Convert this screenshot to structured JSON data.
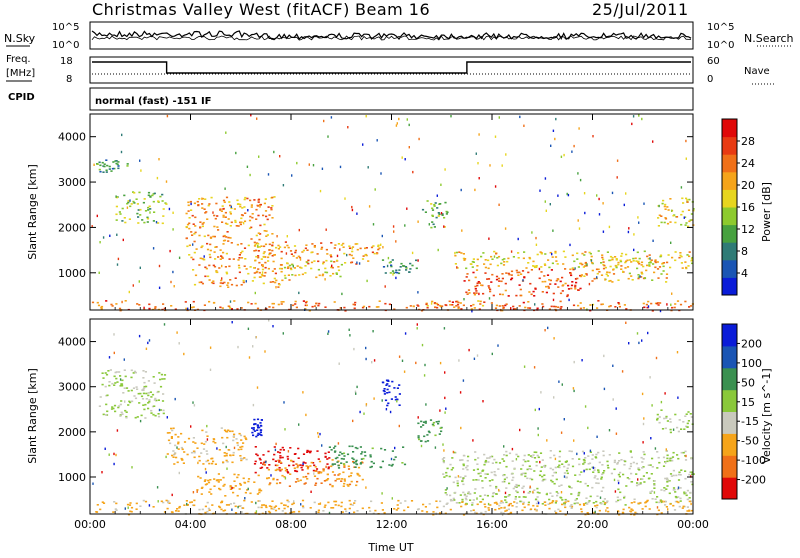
{
  "header": {
    "station": "Christmas Valley West (fitACF)",
    "beam": "Beam 16",
    "date": "25/Jul/2011"
  },
  "noise_panel": {
    "left_label": "N.Sky",
    "left_ticks": [
      "10^5",
      "10^0"
    ],
    "right_ticks": [
      "10^5",
      "10^0"
    ],
    "right_label": "N.Search"
  },
  "freq_panel": {
    "left_label_1": "Freq.",
    "left_label_2": "[MHz]",
    "left_ticks": [
      "18",
      "8"
    ],
    "right_ticks": [
      "60",
      "0"
    ],
    "right_label": "Nave",
    "cpid_label": "CPID",
    "mode_text": "normal (fast) -151 IF"
  },
  "chart_data": [
    {
      "type": "heatmap",
      "name": "power",
      "title": "",
      "xlabel": "Time UT",
      "ylabel": "Slant Range [km]",
      "x_ticks": [
        "00:00",
        "04:00",
        "08:00",
        "12:00",
        "16:00",
        "20:00",
        "00:00"
      ],
      "y_ticks": [
        "1000",
        "2000",
        "3000",
        "4000"
      ],
      "xlim_hours": [
        0,
        24
      ],
      "ylim_km": [
        180,
        4500
      ],
      "colorbar_label": "Power [dB]",
      "colorbar_ticks": [
        "4",
        "8",
        "12",
        "16",
        "20",
        "24",
        "28"
      ],
      "colorscale": [
        "#0a1cd8",
        "#1a55b4",
        "#2f7b76",
        "#47a13f",
        "#8dca2e",
        "#e7d51f",
        "#f5a41a",
        "#f07018",
        "#e83a12",
        "#e00808"
      ],
      "features": [
        {
          "t": [
            0.2,
            1.6
          ],
          "r": [
            3200,
            3500
          ],
          "v": 10
        },
        {
          "t": [
            1.0,
            3.0
          ],
          "r": [
            2100,
            2800
          ],
          "v": 14
        },
        {
          "t": [
            3.8,
            7.3
          ],
          "r": [
            1300,
            2700
          ],
          "v": 22
        },
        {
          "t": [
            4.0,
            8.0
          ],
          "r": [
            700,
            1200
          ],
          "v": 22
        },
        {
          "t": [
            6.5,
            11.5
          ],
          "r": [
            1200,
            1700
          ],
          "v": 22
        },
        {
          "t": [
            7.5,
            10.0
          ],
          "r": [
            900,
            1300
          ],
          "v": 18
        },
        {
          "t": [
            11.5,
            13.0
          ],
          "r": [
            1000,
            1300
          ],
          "v": 10
        },
        {
          "t": [
            14.5,
            24.0
          ],
          "r": [
            1100,
            1500
          ],
          "v": 18
        },
        {
          "t": [
            14.8,
            19.5
          ],
          "r": [
            500,
            1100
          ],
          "v": 26
        },
        {
          "t": [
            19.5,
            23.0
          ],
          "r": [
            800,
            1300
          ],
          "v": 20
        },
        {
          "t": [
            13.2,
            14.2
          ],
          "r": [
            2000,
            2600
          ],
          "v": 12
        },
        {
          "t": [
            22.5,
            24.0
          ],
          "r": [
            2000,
            2700
          ],
          "v": 18
        },
        {
          "t": [
            0.0,
            24.0
          ],
          "r": [
            180,
            400
          ],
          "v": 24
        }
      ]
    },
    {
      "type": "heatmap",
      "name": "velocity",
      "title": "",
      "xlabel": "Time UT",
      "ylabel": "Slant Range [km]",
      "x_ticks": [
        "00:00",
        "04:00",
        "08:00",
        "12:00",
        "16:00",
        "20:00",
        "00:00"
      ],
      "y_ticks": [
        "1000",
        "2000",
        "3000",
        "4000"
      ],
      "xlim_hours": [
        0,
        24
      ],
      "ylim_km": [
        180,
        4500
      ],
      "colorbar_label": "Velocity [m s^-1]",
      "colorbar_ticks": [
        "200",
        "100",
        "50",
        "15",
        "-15",
        "-50",
        "-100",
        "-200"
      ],
      "colorscale": [
        "#0a1cd8",
        "#1a55b4",
        "#3a9050",
        "#8ac83a",
        "#c9c9bd",
        "#f5a41a",
        "#f07018",
        "#e00808"
      ],
      "features": [
        {
          "t": [
            0.3,
            3.0
          ],
          "r": [
            2300,
            3400
          ],
          "v": 0
        },
        {
          "t": [
            3.0,
            6.3
          ],
          "r": [
            1300,
            2100
          ],
          "v": -40
        },
        {
          "t": [
            4.2,
            6.8
          ],
          "r": [
            600,
            1100
          ],
          "v": -60
        },
        {
          "t": [
            6.5,
            9.5
          ],
          "r": [
            1100,
            1700
          ],
          "v": -180
        },
        {
          "t": [
            6.8,
            11.0
          ],
          "r": [
            800,
            1400
          ],
          "v": -70
        },
        {
          "t": [
            9.5,
            12.5
          ],
          "r": [
            1200,
            1700
          ],
          "v": 45
        },
        {
          "t": [
            13.0,
            14.0
          ],
          "r": [
            1800,
            2300
          ],
          "v": 40
        },
        {
          "t": [
            14.0,
            24.0
          ],
          "r": [
            400,
            1600
          ],
          "v": 0
        },
        {
          "t": [
            11.6,
            12.3
          ],
          "r": [
            2600,
            3200
          ],
          "v": 220
        },
        {
          "t": [
            6.4,
            6.8
          ],
          "r": [
            1900,
            2300
          ],
          "v": 200
        },
        {
          "t": [
            0.0,
            24.0
          ],
          "r": [
            180,
            500
          ],
          "v": -40
        },
        {
          "t": [
            22.5,
            24.0
          ],
          "r": [
            2000,
            2500
          ],
          "v": 0
        }
      ]
    }
  ]
}
